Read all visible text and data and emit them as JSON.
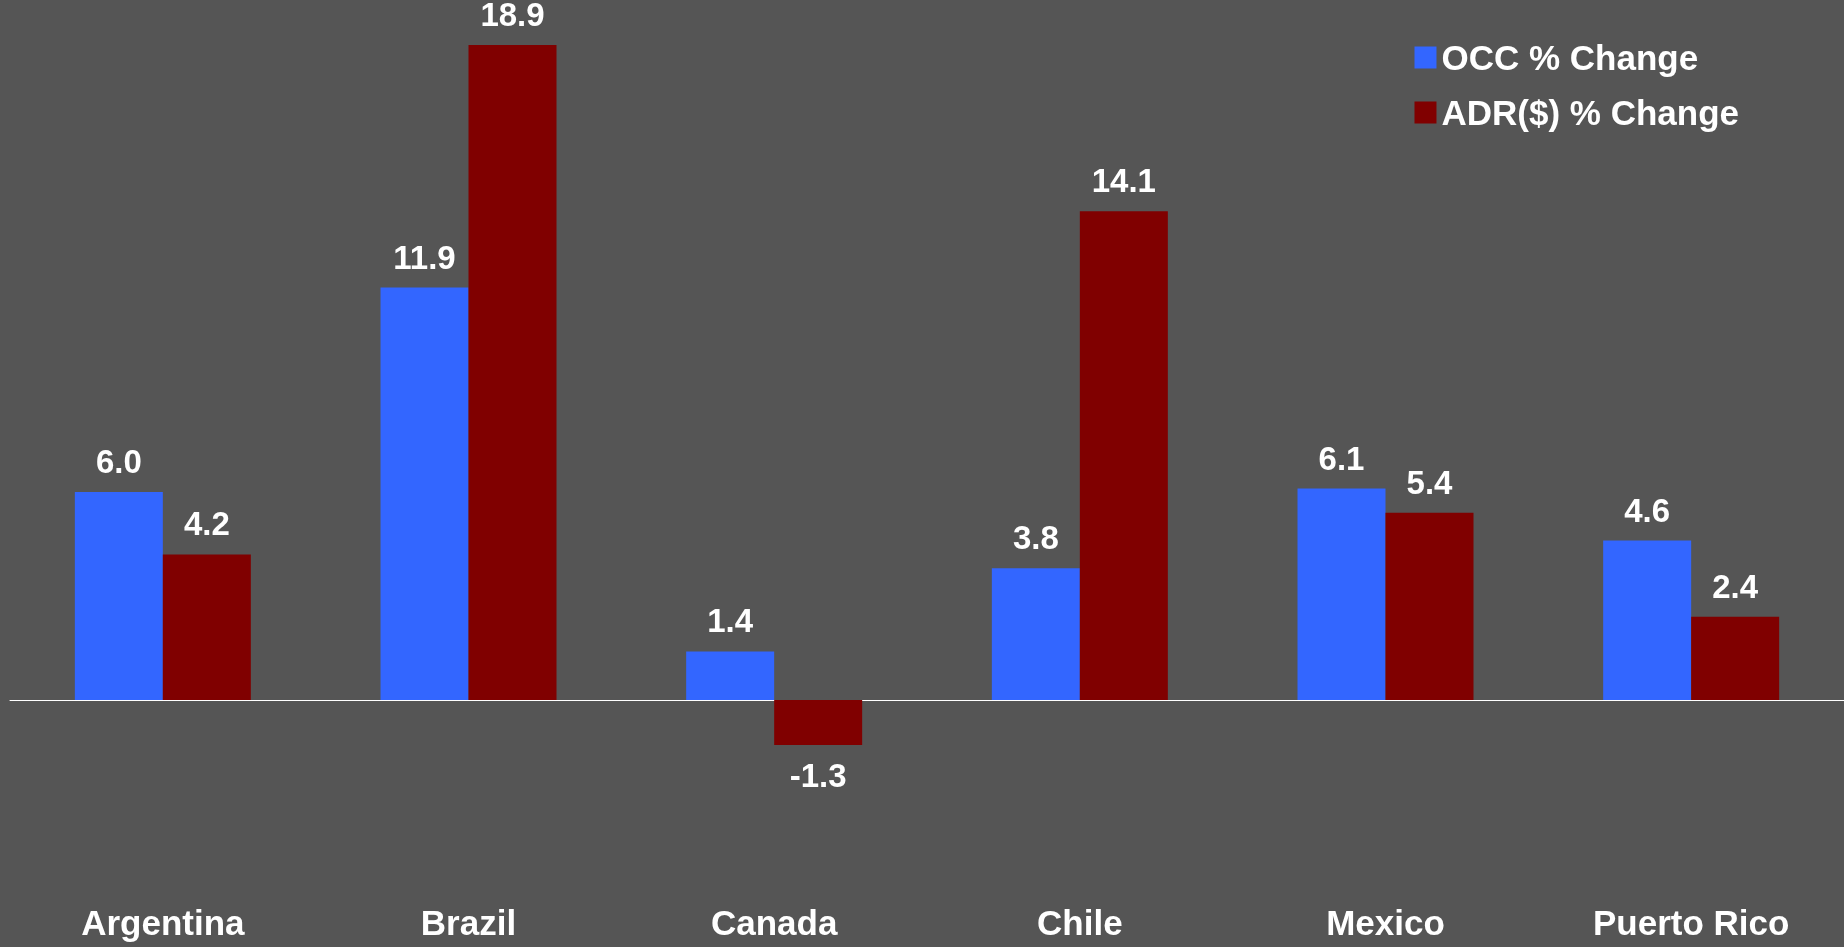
{
  "chart_data": {
    "type": "bar",
    "categories": [
      "Argentina",
      "Brazil",
      "Canada",
      "Chile",
      "Mexico",
      "Puerto Rico"
    ],
    "series": [
      {
        "name": "OCC % Change",
        "color": "#3366ff",
        "values": [
          6.0,
          11.9,
          1.4,
          3.8,
          6.1,
          4.6
        ],
        "value_labels": [
          "6.0",
          "11.9",
          "1.4",
          "3.8",
          "6.1",
          "4.6"
        ]
      },
      {
        "name": "ADR($) % Change",
        "color": "#800000",
        "values": [
          4.2,
          18.9,
          -1.3,
          14.1,
          5.4,
          2.4
        ],
        "value_labels": [
          "4.2",
          "18.9",
          "-1.3",
          "14.1",
          "5.4",
          "2.4"
        ]
      }
    ],
    "legend": "top right"
  }
}
